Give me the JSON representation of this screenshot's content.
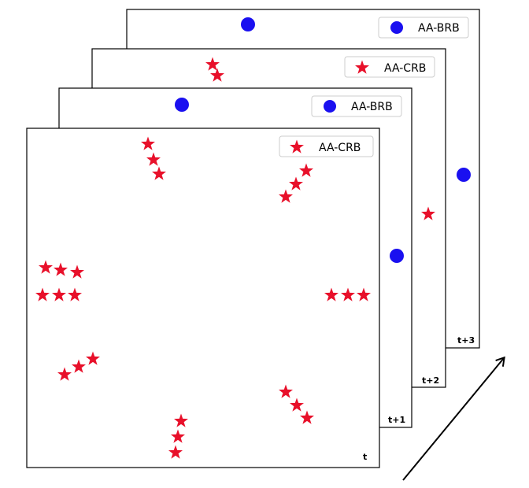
{
  "frames": [
    {
      "id": "t+3",
      "label": "t+3",
      "legend": {
        "marker": "circle",
        "text": "AA-BRB"
      }
    },
    {
      "id": "t+2",
      "label": "t+2",
      "legend": {
        "marker": "star",
        "text": "AA-CRB"
      }
    },
    {
      "id": "t+1",
      "label": "t+1",
      "legend": {
        "marker": "circle",
        "text": "AA-BRB"
      }
    },
    {
      "id": "t",
      "label": "t",
      "legend": {
        "marker": "star",
        "text": "AA-CRB"
      }
    }
  ],
  "colors": {
    "star": "#e8102a",
    "circle": "#1a10f0",
    "frame_border": "#000000",
    "legend_border": "#cccccc"
  },
  "arrow": {
    "icon": "arrow-up-right-icon"
  }
}
